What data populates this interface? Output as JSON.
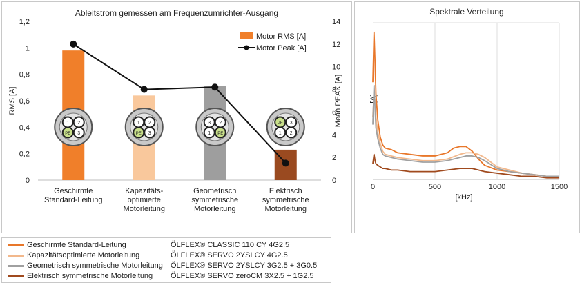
{
  "chart_data": [
    {
      "type": "bar",
      "title": "Ableitstrom gemessen am Frequenzumrichter-Ausgang",
      "ylabel": "RMS [A]",
      "y2label": "Mean PEAK [A]",
      "ylim": [
        0,
        1.2
      ],
      "y2lim": [
        0,
        14
      ],
      "yticks": [
        "0",
        "0,2",
        "0,4",
        "0,6",
        "0,8",
        "1",
        "1,2"
      ],
      "y2ticks": [
        "0",
        "2",
        "4",
        "6",
        "8",
        "10",
        "12",
        "14"
      ],
      "categories": [
        [
          "Geschirmte",
          "Standard-Leitung"
        ],
        [
          "Kapazitäts-",
          "optimierte",
          "Motorleitung"
        ],
        [
          "Geometrisch",
          "symmetrische",
          "Motorleitung"
        ],
        [
          "Elektrisch",
          "symmetrische",
          "Motorleitung"
        ]
      ],
      "bar_colors": [
        "#f07f2a",
        "#f9c89c",
        "#9e9e9e",
        "#9a4a20"
      ],
      "series": [
        {
          "name": "Motor RMS [A]",
          "type": "bar",
          "axis": "left",
          "values": [
            0.98,
            0.64,
            0.71,
            0.23
          ]
        },
        {
          "name": "Motor Peak [A]",
          "type": "line",
          "axis": "right",
          "values": [
            12,
            8,
            8.2,
            1.5
          ],
          "color": "#111111"
        }
      ],
      "legend": {
        "position": "top-right",
        "entries": [
          "Motor RMS [A]",
          "Motor Peak [A]"
        ]
      },
      "icons": [
        {
          "labels": [
            "1",
            "2",
            "PE",
            "3"
          ]
        },
        {
          "labels": [
            "1",
            "2",
            "PE",
            "3"
          ]
        },
        {
          "labels": [
            "3",
            "2",
            "1",
            "PE"
          ]
        },
        {
          "labels": [
            "PE",
            "3",
            "1",
            "2"
          ]
        }
      ]
    },
    {
      "type": "line",
      "title": "Spektrale Verteilung",
      "xlabel": "[kHz]",
      "ylabel": "[A]",
      "xlim": [
        0,
        1500
      ],
      "ylim": [
        0,
        1
      ],
      "xticks": [
        "0",
        "500",
        "1000",
        "1500"
      ],
      "grid": true,
      "series": [
        {
          "color": "#e8772a",
          "x": [
            0,
            10,
            18,
            25,
            40,
            60,
            80,
            100,
            150,
            200,
            300,
            400,
            500,
            600,
            650,
            700,
            750,
            800,
            850,
            900,
            1000,
            1100,
            1200,
            1300,
            1400,
            1500
          ],
          "y": [
            0.62,
            0.94,
            0.74,
            0.55,
            0.38,
            0.27,
            0.22,
            0.2,
            0.19,
            0.17,
            0.16,
            0.15,
            0.15,
            0.17,
            0.2,
            0.21,
            0.21,
            0.18,
            0.13,
            0.09,
            0.06,
            0.05,
            0.04,
            0.03,
            0.02,
            0.02
          ]
        },
        {
          "color": "#f2b88c",
          "x": [
            0,
            10,
            18,
            25,
            40,
            60,
            80,
            100,
            150,
            200,
            300,
            400,
            500,
            600,
            700,
            750,
            800,
            850,
            900,
            1000,
            1100,
            1200,
            1300,
            1400,
            1500
          ],
          "y": [
            0.4,
            0.56,
            0.5,
            0.4,
            0.3,
            0.23,
            0.18,
            0.16,
            0.15,
            0.14,
            0.13,
            0.12,
            0.12,
            0.13,
            0.16,
            0.17,
            0.17,
            0.16,
            0.14,
            0.08,
            0.06,
            0.04,
            0.03,
            0.02,
            0.02
          ]
        },
        {
          "color": "#a0a0a0",
          "x": [
            0,
            10,
            18,
            25,
            40,
            60,
            80,
            100,
            150,
            200,
            300,
            400,
            500,
            600,
            700,
            750,
            800,
            850,
            900,
            1000,
            1100,
            1200,
            1300,
            1400,
            1500
          ],
          "y": [
            0.35,
            0.6,
            0.45,
            0.33,
            0.26,
            0.2,
            0.16,
            0.15,
            0.14,
            0.13,
            0.12,
            0.11,
            0.11,
            0.12,
            0.14,
            0.15,
            0.15,
            0.14,
            0.12,
            0.07,
            0.05,
            0.04,
            0.03,
            0.02,
            0.02
          ]
        },
        {
          "color": "#a04a1e",
          "x": [
            0,
            10,
            18,
            25,
            40,
            60,
            80,
            100,
            150,
            200,
            300,
            400,
            500,
            600,
            700,
            800,
            900,
            1000,
            1100,
            1200,
            1300,
            1400,
            1500
          ],
          "y": [
            0.1,
            0.16,
            0.12,
            0.1,
            0.09,
            0.08,
            0.07,
            0.07,
            0.06,
            0.06,
            0.05,
            0.05,
            0.05,
            0.06,
            0.07,
            0.07,
            0.05,
            0.04,
            0.03,
            0.02,
            0.02,
            0.01,
            0.01
          ]
        }
      ]
    }
  ],
  "legend": {
    "items": [
      {
        "name": "Geschirmte Standard-Leitung",
        "product": "ÖLFLEX® CLASSIC 110 CY 4G2.5",
        "color": "#e8772a"
      },
      {
        "name": "Kapazitätsoptimierte Motorleitung",
        "product": "ÖLFLEX® SERVO 2YSLCY 4G2.5",
        "color": "#f2b88c"
      },
      {
        "name": "Geometrisch symmetrische Motorleitung",
        "product": "ÖLFLEX® SERVO 2YSLCY 3G2.5 + 3G0.5",
        "color": "#a0a0a0"
      },
      {
        "name": "Elektrisch symmetrische Motorleitung",
        "product": "ÖLFLEX® SERVO zeroCM 3X2.5 + 1G2.5",
        "color": "#a04a1e"
      }
    ]
  }
}
